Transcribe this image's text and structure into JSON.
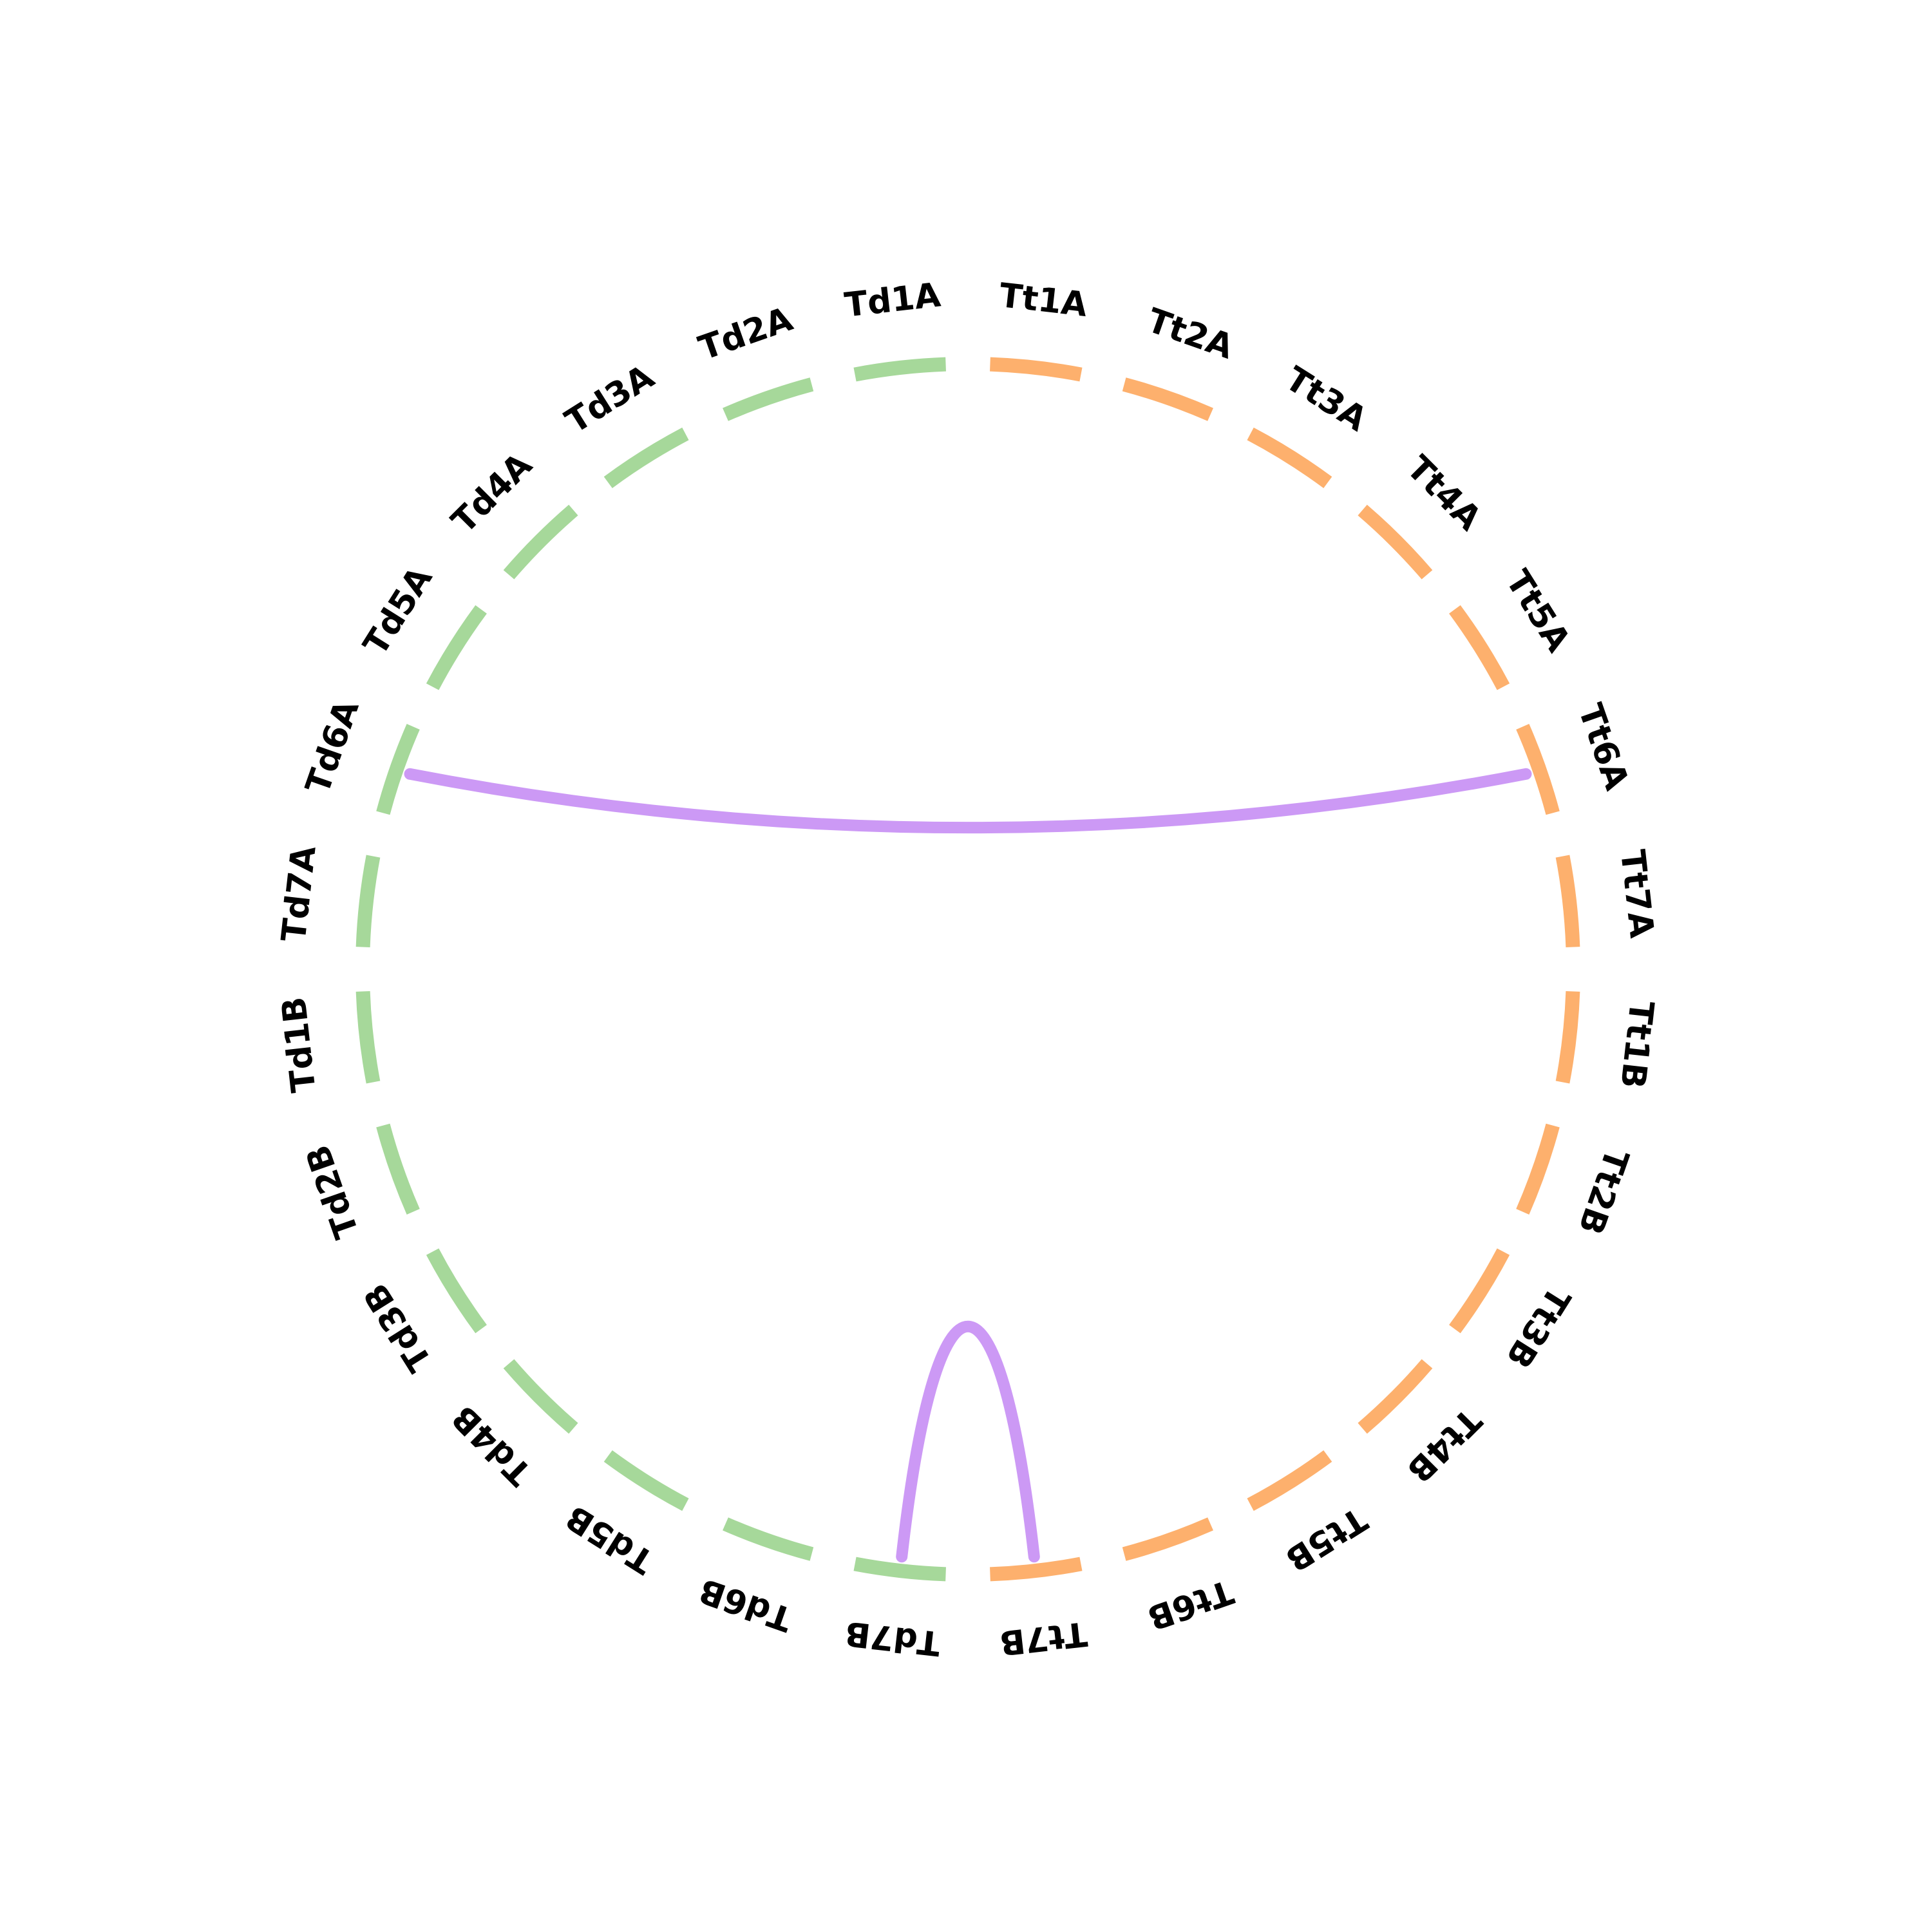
{
  "colors": {
    "group_d": "#a6d89a",
    "group_t": "#fdb06d",
    "link": "#cc99f5"
  },
  "segments": [
    {
      "label": "Tt1A",
      "group": "t"
    },
    {
      "label": "Tt2A",
      "group": "t"
    },
    {
      "label": "Tt3A",
      "group": "t"
    },
    {
      "label": "Tt4A",
      "group": "t"
    },
    {
      "label": "Tt5A",
      "group": "t"
    },
    {
      "label": "Tt6A",
      "group": "t"
    },
    {
      "label": "Tt7A",
      "group": "t"
    },
    {
      "label": "Tt1B",
      "group": "t"
    },
    {
      "label": "Tt2B",
      "group": "t"
    },
    {
      "label": "Tt3B",
      "group": "t"
    },
    {
      "label": "Tt4B",
      "group": "t"
    },
    {
      "label": "Tt5B",
      "group": "t"
    },
    {
      "label": "Tt6B",
      "group": "t"
    },
    {
      "label": "Tt7B",
      "group": "t"
    },
    {
      "label": "Td7B",
      "group": "d"
    },
    {
      "label": "Td6B",
      "group": "d"
    },
    {
      "label": "Td5B",
      "group": "d"
    },
    {
      "label": "Td4B",
      "group": "d"
    },
    {
      "label": "Td3B",
      "group": "d"
    },
    {
      "label": "Td2B",
      "group": "d"
    },
    {
      "label": "Td1B",
      "group": "d"
    },
    {
      "label": "Td7A",
      "group": "d"
    },
    {
      "label": "Td6A",
      "group": "d"
    },
    {
      "label": "Td5A",
      "group": "d"
    },
    {
      "label": "Td4A",
      "group": "d"
    },
    {
      "label": "Td3A",
      "group": "d"
    },
    {
      "label": "Td2A",
      "group": "d"
    },
    {
      "label": "Td1A",
      "group": "d"
    }
  ],
  "links": [
    {
      "from": "Tt6A",
      "to": "Td6A"
    },
    {
      "from": "Tt7B",
      "to": "Td7B"
    }
  ]
}
